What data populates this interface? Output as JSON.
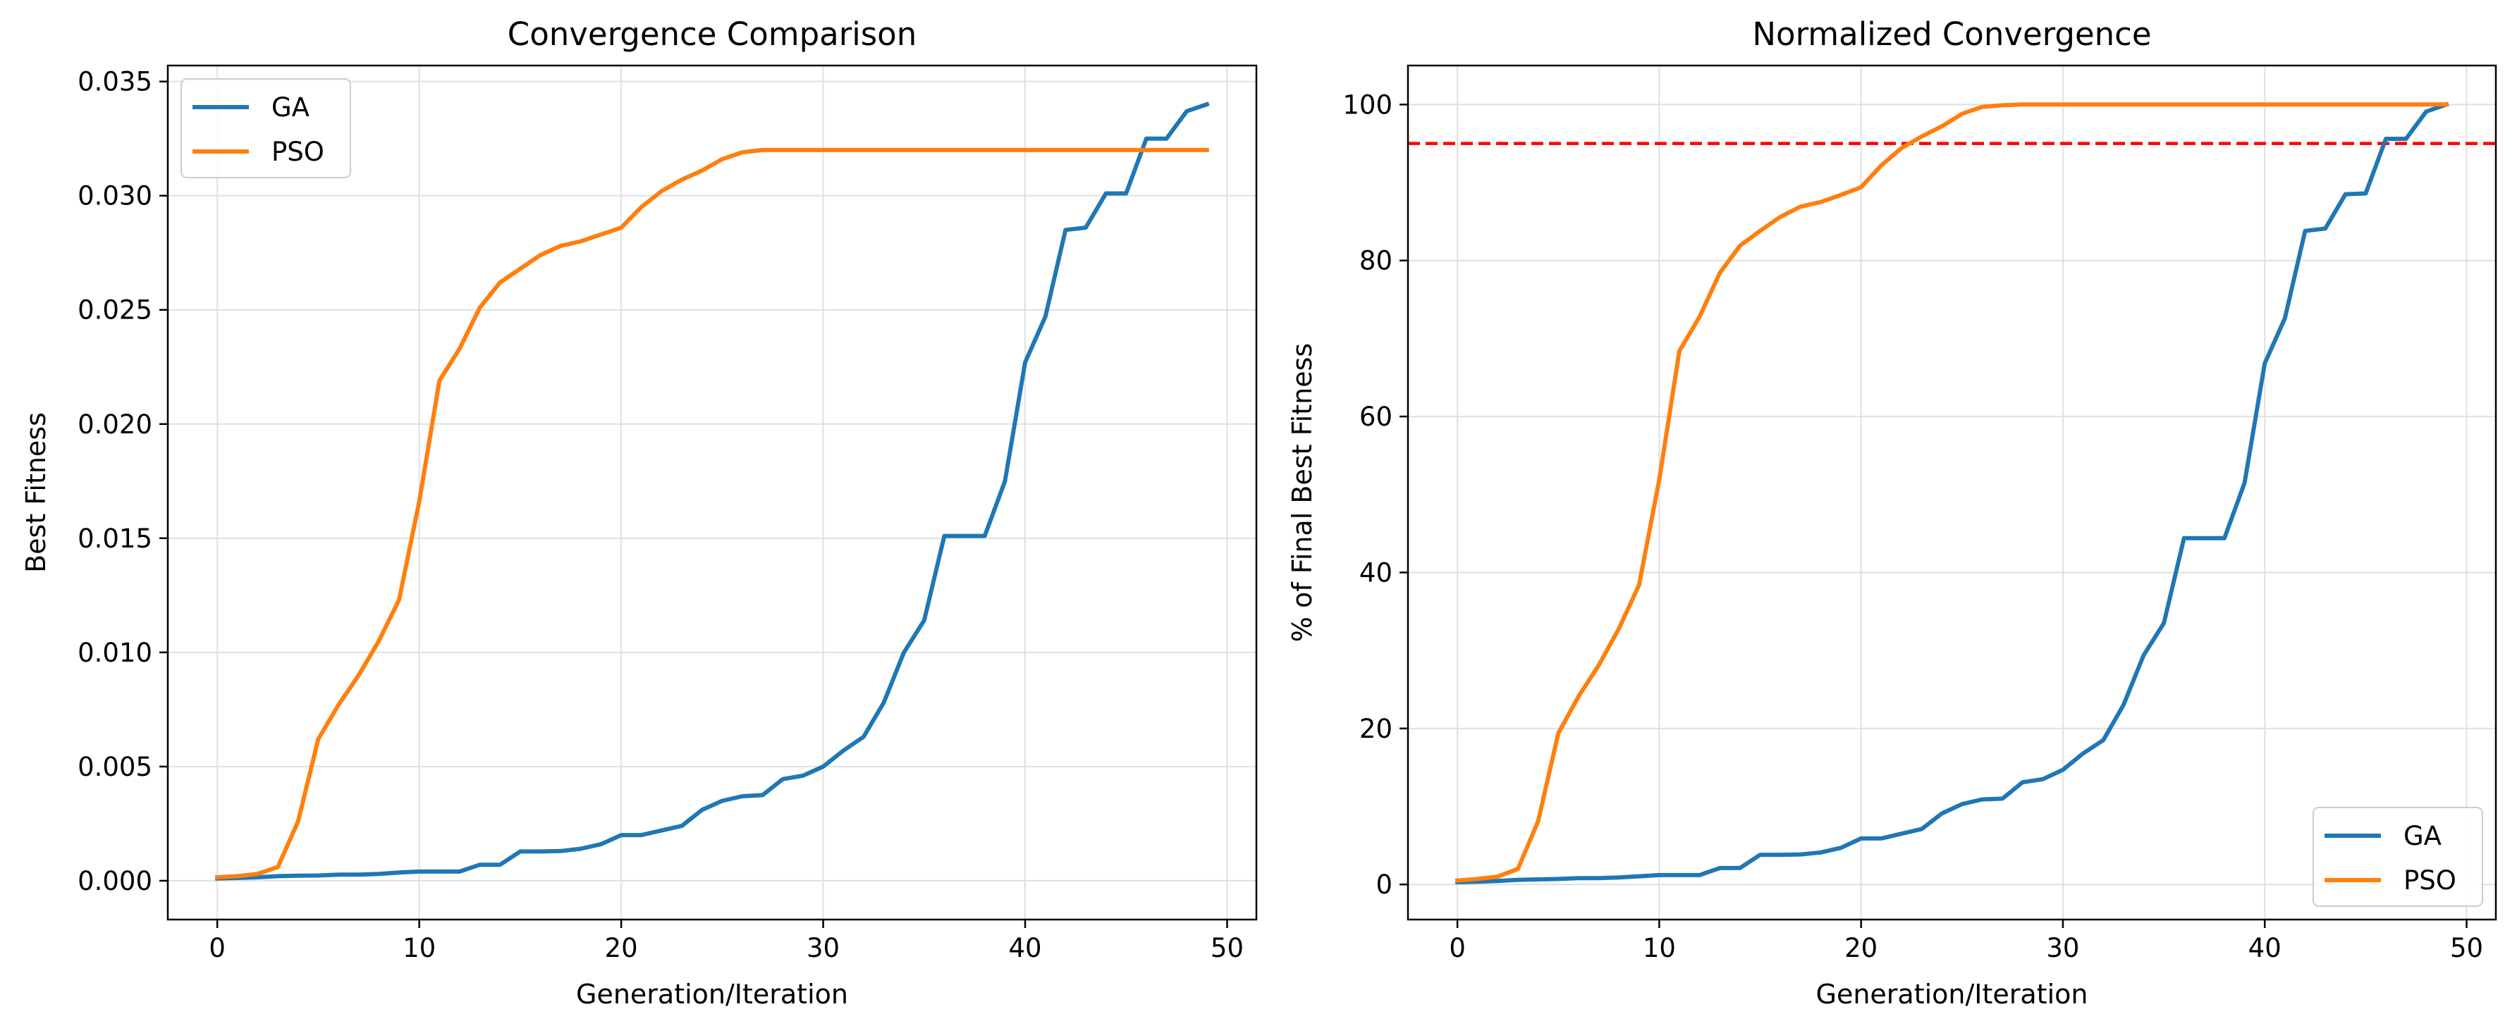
{
  "chart_data": [
    {
      "type": "line",
      "title": "Convergence Comparison",
      "xlabel": "Generation/Iteration",
      "ylabel": "Best Fitness",
      "xlim": [
        -2.45,
        51.45
      ],
      "ylim": [
        -0.0017,
        0.0357
      ],
      "xticks": [
        0,
        10,
        20,
        30,
        40,
        50
      ],
      "xtick_labels": [
        "0",
        "10",
        "20",
        "30",
        "40",
        "50"
      ],
      "yticks": [
        0.0,
        0.005,
        0.01,
        0.015,
        0.02,
        0.025,
        0.03,
        0.035
      ],
      "ytick_labels": [
        "0.000",
        "0.005",
        "0.010",
        "0.015",
        "0.020",
        "0.025",
        "0.030",
        "0.035"
      ],
      "grid": true,
      "legend_position": "upper-left",
      "x": [
        0,
        1,
        2,
        3,
        4,
        5,
        6,
        7,
        8,
        9,
        10,
        11,
        12,
        13,
        14,
        15,
        16,
        17,
        18,
        19,
        20,
        21,
        22,
        23,
        24,
        25,
        26,
        27,
        28,
        29,
        30,
        31,
        32,
        33,
        34,
        35,
        36,
        37,
        38,
        39,
        40,
        41,
        42,
        43,
        44,
        45,
        46,
        47,
        48,
        49
      ],
      "series": [
        {
          "name": "GA",
          "color": "#1f77b4",
          "values": [
            0.0001,
            0.00012,
            0.00015,
            0.0002,
            0.00022,
            0.00023,
            0.00027,
            0.00027,
            0.0003,
            0.00036,
            0.0004,
            0.0004,
            0.0004,
            0.0007,
            0.0007,
            0.00128,
            0.00128,
            0.0013,
            0.0014,
            0.0016,
            0.002,
            0.002,
            0.0022,
            0.0024,
            0.0031,
            0.0035,
            0.0037,
            0.00375,
            0.00445,
            0.0046,
            0.005,
            0.0057,
            0.0063,
            0.0078,
            0.01,
            0.0114,
            0.0151,
            0.0151,
            0.0151,
            0.0175,
            0.0227,
            0.0247,
            0.0285,
            0.0286,
            0.0301,
            0.0301,
            0.0325,
            0.0325,
            0.0337,
            0.034
          ]
        },
        {
          "name": "PSO",
          "color": "#ff7f0e",
          "values": [
            0.00015,
            0.0002,
            0.0003,
            0.0006,
            0.0026,
            0.0062,
            0.0077,
            0.009,
            0.0105,
            0.0123,
            0.0166,
            0.0219,
            0.0233,
            0.0251,
            0.0262,
            0.0268,
            0.0274,
            0.0278,
            0.028,
            0.0283,
            0.0286,
            0.0295,
            0.0302,
            0.0307,
            0.0311,
            0.0316,
            0.0319,
            0.032,
            0.032,
            0.032,
            0.032,
            0.032,
            0.032,
            0.032,
            0.032,
            0.032,
            0.032,
            0.032,
            0.032,
            0.032,
            0.032,
            0.032,
            0.032,
            0.032,
            0.032,
            0.032,
            0.032,
            0.032,
            0.032,
            0.032
          ]
        }
      ]
    },
    {
      "type": "line",
      "title": "Normalized Convergence",
      "xlabel": "Generation/Iteration",
      "ylabel": "% of Final Best Fitness",
      "xlim": [
        -2.45,
        51.45
      ],
      "ylim": [
        -4.5,
        105
      ],
      "xticks": [
        0,
        10,
        20,
        30,
        40,
        50
      ],
      "xtick_labels": [
        "0",
        "10",
        "20",
        "30",
        "40",
        "50"
      ],
      "yticks": [
        0,
        20,
        40,
        60,
        80,
        100
      ],
      "ytick_labels": [
        "0",
        "20",
        "40",
        "60",
        "80",
        "100"
      ],
      "grid": true,
      "legend_position": "lower-right",
      "reference_line": {
        "y": 95,
        "color": "#ff0000",
        "style": "dashed"
      },
      "x": [
        0,
        1,
        2,
        3,
        4,
        5,
        6,
        7,
        8,
        9,
        10,
        11,
        12,
        13,
        14,
        15,
        16,
        17,
        18,
        19,
        20,
        21,
        22,
        23,
        24,
        25,
        26,
        27,
        28,
        29,
        30,
        31,
        32,
        33,
        34,
        35,
        36,
        37,
        38,
        39,
        40,
        41,
        42,
        43,
        44,
        45,
        46,
        47,
        48,
        49
      ],
      "series": [
        {
          "name": "GA",
          "color": "#1f77b4",
          "values": [
            0.3,
            0.35,
            0.45,
            0.6,
            0.65,
            0.7,
            0.8,
            0.8,
            0.9,
            1.05,
            1.2,
            1.2,
            1.2,
            2.1,
            2.1,
            3.8,
            3.8,
            3.85,
            4.1,
            4.7,
            5.9,
            5.9,
            6.5,
            7.1,
            9.1,
            10.3,
            10.9,
            11.0,
            13.1,
            13.5,
            14.7,
            16.8,
            18.5,
            23.0,
            29.4,
            33.5,
            44.4,
            44.4,
            44.4,
            51.5,
            66.8,
            72.6,
            83.8,
            84.1,
            88.5,
            88.6,
            95.6,
            95.6,
            99.1,
            100
          ]
        },
        {
          "name": "PSO",
          "color": "#ff7f0e",
          "values": [
            0.5,
            0.7,
            1.0,
            2.0,
            8.1,
            19.4,
            24.1,
            28.1,
            32.8,
            38.4,
            51.9,
            68.4,
            72.8,
            78.4,
            81.9,
            83.8,
            85.6,
            86.9,
            87.5,
            88.4,
            89.4,
            92.2,
            94.4,
            95.9,
            97.2,
            98.8,
            99.7,
            99.9,
            100,
            100,
            100,
            100,
            100,
            100,
            100,
            100,
            100,
            100,
            100,
            100,
            100,
            100,
            100,
            100,
            100,
            100,
            100,
            100,
            100,
            100
          ]
        }
      ]
    }
  ]
}
